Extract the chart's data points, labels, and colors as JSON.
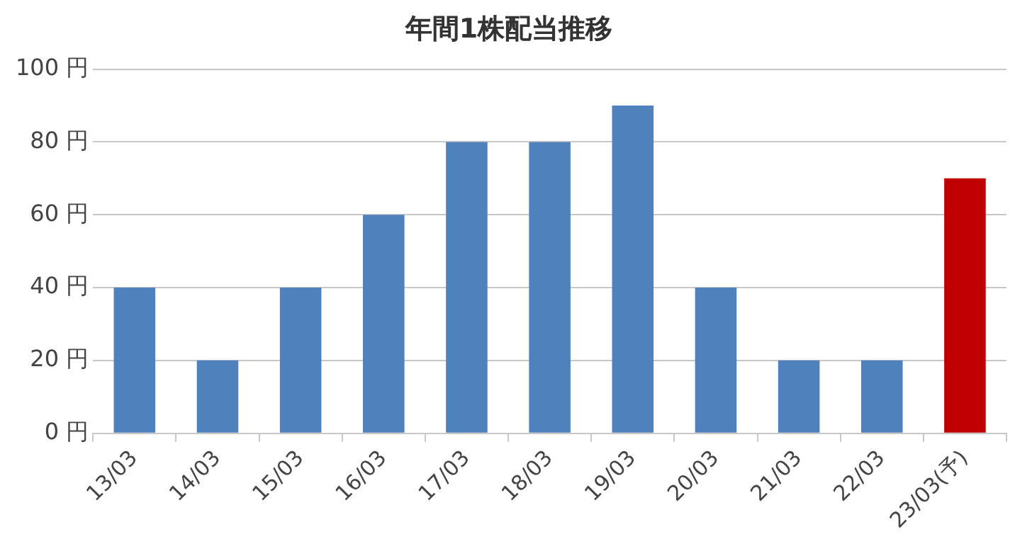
{
  "chart_data": {
    "type": "bar",
    "title": "年間1株配当推移",
    "categories": [
      "13/03",
      "14/03",
      "15/03",
      "16/03",
      "17/03",
      "18/03",
      "19/03",
      "20/03",
      "21/03",
      "22/03",
      "23/03(予)"
    ],
    "values": [
      40,
      20,
      40,
      60,
      80,
      80,
      90,
      40,
      20,
      20,
      70
    ],
    "colors": [
      "#4f81bd",
      "#4f81bd",
      "#4f81bd",
      "#4f81bd",
      "#4f81bd",
      "#4f81bd",
      "#4f81bd",
      "#4f81bd",
      "#4f81bd",
      "#4f81bd",
      "#c00000"
    ],
    "ylim": [
      0,
      100
    ],
    "yticks": [
      {
        "value": 0,
        "label": "0 円"
      },
      {
        "value": 20,
        "label": "20 円"
      },
      {
        "value": 40,
        "label": "40 円"
      },
      {
        "value": 60,
        "label": "60 円"
      },
      {
        "value": 80,
        "label": "80 円"
      },
      {
        "value": 100,
        "label": "100 円"
      }
    ],
    "grid": "y",
    "legend": false
  }
}
